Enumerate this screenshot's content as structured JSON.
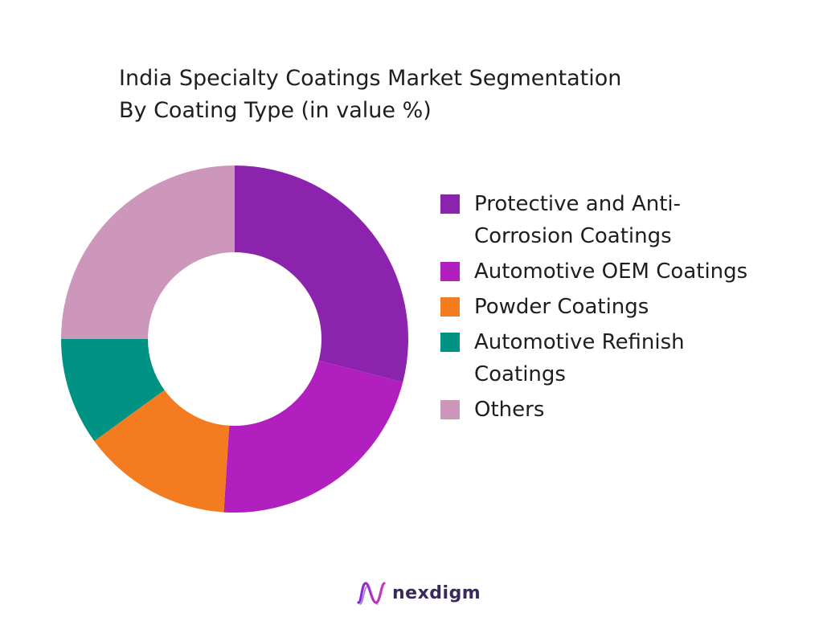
{
  "chart_data": {
    "type": "pie",
    "title_lines": [
      "India Specialty Coatings Market Segmentation",
      "By Coating Type (in value %)"
    ],
    "categories": [
      "Protective and Anti-Corrosion Coatings",
      "Automotive OEM Coatings",
      "Powder Coatings",
      "Automotive Refinish Coatings",
      "Others"
    ],
    "legend_lines": [
      [
        "Protective and Anti-",
        "Corrosion Coatings"
      ],
      [
        "Automotive OEM Coatings"
      ],
      [
        "Powder Coatings"
      ],
      [
        "Automotive Refinish",
        "Coatings"
      ],
      [
        "Others"
      ]
    ],
    "values": [
      29,
      22,
      14,
      10,
      25
    ],
    "colors": [
      "#8b23ad",
      "#b21fbf",
      "#f47c20",
      "#009384",
      "#cd96bb"
    ],
    "donut": true,
    "legend_position": "right",
    "start": "top",
    "direction": "clockwise"
  },
  "brand": {
    "name": "nexdigm",
    "logo_icon": "nexdigm-wave-icon",
    "color": "#3a2a5a"
  }
}
